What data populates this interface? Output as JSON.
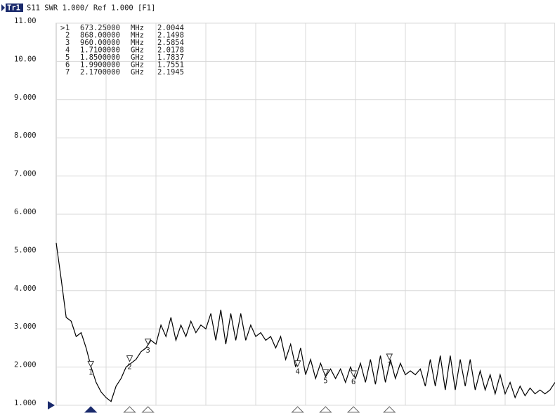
{
  "chart_data": {
    "type": "line",
    "trace": "Tr1",
    "title": "S11 SWR 1.000/ Ref 1.000 [F1]",
    "color": "#000000",
    "grid": true,
    "xlim": [
      500,
      3000
    ],
    "ylim": [
      1,
      11
    ],
    "yticks": [
      {
        "value": 11,
        "label": "11.00"
      },
      {
        "value": 10,
        "label": "10.00"
      },
      {
        "value": 9,
        "label": "9.000"
      },
      {
        "value": 8,
        "label": "8.000"
      },
      {
        "value": 7,
        "label": "7.000"
      },
      {
        "value": 6,
        "label": "6.000"
      },
      {
        "value": 5,
        "label": "5.000"
      },
      {
        "value": 4,
        "label": "4.000"
      },
      {
        "value": 3,
        "label": "3.000"
      },
      {
        "value": 2,
        "label": "2.000"
      },
      {
        "value": 1,
        "label": "1.000"
      }
    ],
    "x": [
      500,
      525,
      550,
      575,
      600,
      625,
      650,
      675,
      700,
      725,
      750,
      775,
      800,
      825,
      850,
      875,
      900,
      925,
      950,
      975,
      1000,
      1025,
      1050,
      1075,
      1100,
      1125,
      1150,
      1175,
      1200,
      1225,
      1250,
      1275,
      1300,
      1325,
      1350,
      1375,
      1400,
      1425,
      1450,
      1475,
      1500,
      1525,
      1550,
      1575,
      1600,
      1625,
      1650,
      1675,
      1700,
      1725,
      1750,
      1775,
      1800,
      1825,
      1850,
      1875,
      1900,
      1925,
      1950,
      1975,
      2000,
      2025,
      2050,
      2075,
      2100,
      2125,
      2150,
      2175,
      2200,
      2225,
      2250,
      2275,
      2300,
      2325,
      2350,
      2375,
      2400,
      2425,
      2450,
      2475,
      2500,
      2525,
      2550,
      2575,
      2600,
      2625,
      2650,
      2675,
      2700,
      2725,
      2750,
      2775,
      2800,
      2825,
      2850,
      2875,
      2900,
      2925,
      2950,
      2975,
      3000
    ],
    "values": [
      5.25,
      4.3,
      3.3,
      3.2,
      2.8,
      2.9,
      2.5,
      2.0,
      1.6,
      1.35,
      1.2,
      1.1,
      1.5,
      1.7,
      2.0,
      2.1,
      2.2,
      2.4,
      2.5,
      2.7,
      2.6,
      3.1,
      2.8,
      3.3,
      2.7,
      3.1,
      2.8,
      3.2,
      2.9,
      3.1,
      3.0,
      3.4,
      2.7,
      3.5,
      2.6,
      3.4,
      2.7,
      3.4,
      2.7,
      3.1,
      2.8,
      2.9,
      2.7,
      2.8,
      2.5,
      2.8,
      2.2,
      2.6,
      2.0,
      2.5,
      1.8,
      2.2,
      1.7,
      2.1,
      1.75,
      1.95,
      1.7,
      1.95,
      1.6,
      2.0,
      1.7,
      2.1,
      1.6,
      2.2,
      1.55,
      2.3,
      1.6,
      2.2,
      1.7,
      2.1,
      1.8,
      1.9,
      1.8,
      1.95,
      1.5,
      2.2,
      1.5,
      2.3,
      1.4,
      2.3,
      1.4,
      2.2,
      1.5,
      2.2,
      1.4,
      1.9,
      1.4,
      1.8,
      1.3,
      1.8,
      1.3,
      1.6,
      1.2,
      1.5,
      1.25,
      1.45,
      1.3,
      1.4,
      1.3,
      1.4,
      1.6
    ],
    "active_symbol": ">",
    "markers": [
      {
        "id": "1",
        "freq": {
          "value": 673.25,
          "label": "673.25000"
        },
        "unit": "MHz",
        "value": 2.0044
      },
      {
        "id": "2",
        "freq": {
          "value": 868,
          "label": "868.00000"
        },
        "unit": "MHz",
        "value": 2.1498
      },
      {
        "id": "3",
        "freq": {
          "value": 960,
          "label": "960.00000"
        },
        "unit": "MHz",
        "value": 2.5854
      },
      {
        "id": "4",
        "freq": {
          "value": 1710,
          "label": "1.7100000"
        },
        "unit": "GHz",
        "value": 2.0178
      },
      {
        "id": "5",
        "freq": {
          "value": 1850,
          "label": "1.8500000"
        },
        "unit": "GHz",
        "value": 1.7837
      },
      {
        "id": "6",
        "freq": {
          "value": 1990,
          "label": "1.9900000"
        },
        "unit": "GHz",
        "value": 1.7551
      },
      {
        "id": "7",
        "freq": {
          "value": 2170,
          "label": "2.1700000"
        },
        "unit": "GHz",
        "value": 2.1945
      }
    ]
  }
}
